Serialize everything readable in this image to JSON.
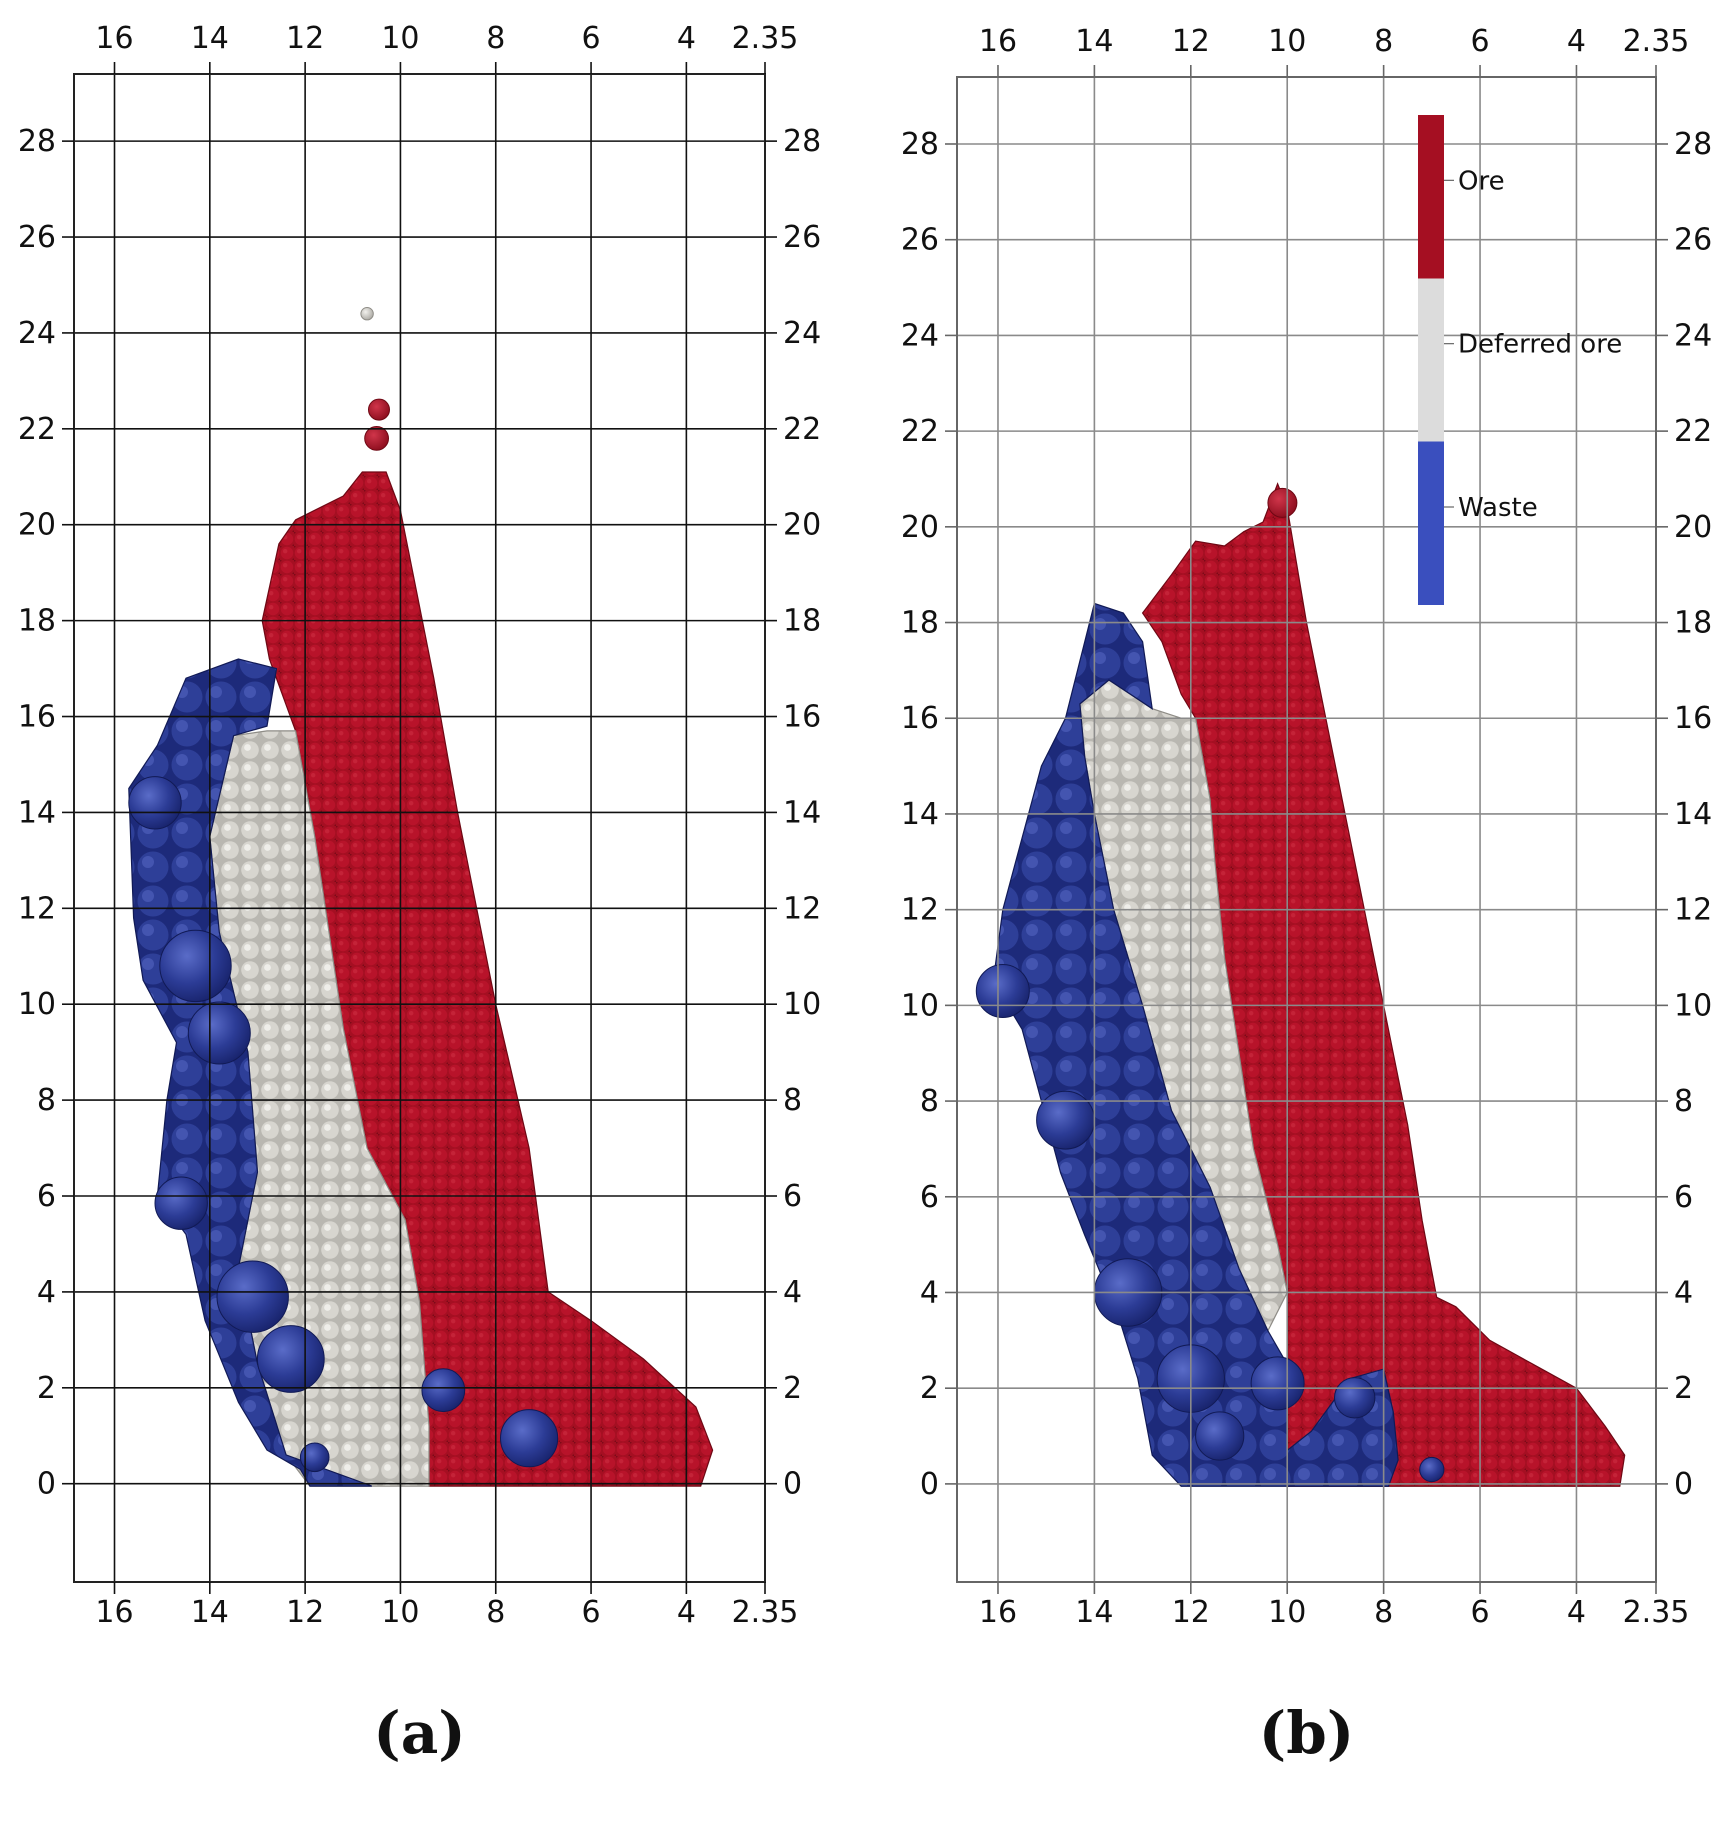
{
  "chart_data": [
    {
      "type": "scatter",
      "panel_label": "(a)",
      "title": "",
      "xlabel": "",
      "ylabel": "",
      "x_ticks": [
        "16",
        "14",
        "12",
        "10",
        "8",
        "6",
        "4",
        "2.35"
      ],
      "x_tick_values": [
        16,
        14,
        12,
        10,
        8,
        6,
        4,
        2.35
      ],
      "y_ticks": [
        "0",
        "2",
        "4",
        "6",
        "8",
        "10",
        "12",
        "14",
        "16",
        "18",
        "20",
        "22",
        "24",
        "26",
        "28"
      ],
      "y_tick_values": [
        0,
        2,
        4,
        6,
        8,
        10,
        12,
        14,
        16,
        18,
        20,
        22,
        24,
        26,
        28
      ],
      "xlim": [
        16.85,
        2.35
      ],
      "ylim": [
        -2.05,
        29.4
      ],
      "grid": true,
      "regions": [
        {
          "material": "Ore",
          "outline": [
            [
              12.9,
              18.0
            ],
            [
              12.55,
              19.6
            ],
            [
              12.2,
              20.1
            ],
            [
              11.6,
              20.4
            ],
            [
              11.2,
              20.6
            ],
            [
              10.8,
              21.1
            ],
            [
              10.3,
              21.1
            ],
            [
              10.0,
              20.3
            ],
            [
              9.3,
              16.8
            ],
            [
              8.8,
              14.0
            ],
            [
              8.0,
              10.0
            ],
            [
              7.3,
              7.0
            ],
            [
              6.9,
              4.0
            ],
            [
              6.0,
              3.4
            ],
            [
              4.9,
              2.6
            ],
            [
              3.8,
              1.6
            ],
            [
              3.45,
              0.7
            ],
            [
              3.7,
              -0.05
            ],
            [
              9.4,
              -0.05
            ],
            [
              9.4,
              1.2
            ],
            [
              9.6,
              3.8
            ],
            [
              9.9,
              5.5
            ],
            [
              10.7,
              7.0
            ],
            [
              11.2,
              9.5
            ],
            [
              11.5,
              11.5
            ],
            [
              11.8,
              13.5
            ],
            [
              12.2,
              15.7
            ],
            [
              12.75,
              17.2
            ]
          ]
        },
        {
          "material": "Deferred ore",
          "outline": [
            [
              13.5,
              15.6
            ],
            [
              12.8,
              15.7
            ],
            [
              12.2,
              15.7
            ],
            [
              11.8,
              13.5
            ],
            [
              11.5,
              11.5
            ],
            [
              11.2,
              9.5
            ],
            [
              10.7,
              7.0
            ],
            [
              9.9,
              5.5
            ],
            [
              9.6,
              3.8
            ],
            [
              9.4,
              1.2
            ],
            [
              9.4,
              -0.05
            ],
            [
              11.9,
              -0.05
            ],
            [
              12.4,
              0.6
            ],
            [
              13.0,
              2.5
            ],
            [
              13.4,
              4.5
            ],
            [
              13.0,
              6.5
            ],
            [
              13.2,
              9.0
            ],
            [
              13.8,
              11.5
            ],
            [
              14.0,
              13.5
            ]
          ]
        },
        {
          "material": "Waste",
          "outline": [
            [
              14.5,
              16.8
            ],
            [
              15.1,
              15.4
            ],
            [
              15.7,
              14.5
            ],
            [
              15.6,
              11.8
            ],
            [
              15.4,
              10.5
            ],
            [
              14.7,
              9.2
            ],
            [
              14.9,
              8.0
            ],
            [
              15.1,
              6.0
            ],
            [
              14.5,
              5.2
            ],
            [
              14.1,
              3.4
            ],
            [
              13.4,
              1.7
            ],
            [
              12.8,
              0.7
            ],
            [
              12.1,
              0.3
            ],
            [
              11.9,
              -0.05
            ],
            [
              10.6,
              -0.05
            ],
            [
              12.4,
              0.6
            ],
            [
              13.0,
              2.5
            ],
            [
              13.4,
              4.5
            ],
            [
              13.0,
              6.5
            ],
            [
              13.2,
              9.0
            ],
            [
              13.8,
              11.5
            ],
            [
              14.0,
              13.5
            ],
            [
              13.5,
              15.6
            ],
            [
              12.8,
              15.8
            ],
            [
              12.6,
              17.0
            ],
            [
              13.4,
              17.2
            ]
          ]
        }
      ],
      "blobs": [
        {
          "material": "Waste",
          "x": 15.15,
          "y": 14.2,
          "r": 0.55
        },
        {
          "material": "Waste",
          "x": 14.3,
          "y": 10.8,
          "r": 0.75
        },
        {
          "material": "Waste",
          "x": 13.8,
          "y": 9.4,
          "r": 0.65
        },
        {
          "material": "Waste",
          "x": 14.6,
          "y": 5.85,
          "r": 0.55
        },
        {
          "material": "Waste",
          "x": 13.1,
          "y": 3.9,
          "r": 0.75
        },
        {
          "material": "Waste",
          "x": 12.3,
          "y": 2.6,
          "r": 0.7
        },
        {
          "material": "Waste",
          "x": 9.1,
          "y": 1.95,
          "r": 0.45
        },
        {
          "material": "Waste",
          "x": 7.3,
          "y": 0.95,
          "r": 0.6
        },
        {
          "material": "Waste",
          "x": 11.8,
          "y": 0.55,
          "r": 0.3
        },
        {
          "material": "Deferred ore",
          "x": 10.7,
          "y": 24.4,
          "r": 0.13
        },
        {
          "material": "Ore",
          "x": 10.45,
          "y": 22.4,
          "r": 0.22
        },
        {
          "material": "Ore",
          "x": 10.5,
          "y": 21.8,
          "r": 0.25
        }
      ]
    },
    {
      "type": "scatter",
      "panel_label": "(b)",
      "title": "",
      "xlabel": "",
      "ylabel": "",
      "x_ticks": [
        "16",
        "14",
        "12",
        "10",
        "8",
        "6",
        "4",
        "2.35"
      ],
      "x_tick_values": [
        16,
        14,
        12,
        10,
        8,
        6,
        4,
        2.35
      ],
      "y_ticks": [
        "0",
        "2",
        "4",
        "6",
        "8",
        "10",
        "12",
        "14",
        "16",
        "18",
        "20",
        "22",
        "24",
        "26",
        "28"
      ],
      "y_tick_values": [
        0,
        2,
        4,
        6,
        8,
        10,
        12,
        14,
        16,
        18,
        20,
        22,
        24,
        26,
        28
      ],
      "xlim": [
        16.85,
        2.35
      ],
      "ylim": [
        -2.05,
        29.4
      ],
      "grid": true,
      "legend": {
        "position": "top-right",
        "items": [
          {
            "label": "Ore",
            "color": "#a50f22"
          },
          {
            "label": "Deferred ore",
            "color": "#dcdcdc"
          },
          {
            "label": "Waste",
            "color": "#3a4fbe"
          }
        ]
      },
      "regions": [
        {
          "material": "Ore",
          "outline": [
            [
              13.0,
              18.2
            ],
            [
              12.4,
              19.0
            ],
            [
              11.9,
              19.7
            ],
            [
              11.3,
              19.6
            ],
            [
              10.9,
              19.9
            ],
            [
              10.5,
              20.1
            ],
            [
              10.2,
              20.9
            ],
            [
              10.0,
              20.4
            ],
            [
              9.6,
              18.0
            ],
            [
              9.2,
              16.0
            ],
            [
              8.6,
              13.0
            ],
            [
              8.0,
              10.0
            ],
            [
              7.5,
              7.5
            ],
            [
              7.2,
              5.5
            ],
            [
              6.9,
              3.9
            ],
            [
              6.5,
              3.7
            ],
            [
              5.8,
              3.0
            ],
            [
              4.9,
              2.5
            ],
            [
              4.0,
              2.0
            ],
            [
              3.4,
              1.2
            ],
            [
              3.0,
              0.6
            ],
            [
              3.1,
              -0.05
            ],
            [
              10.0,
              -0.05
            ],
            [
              10.0,
              4.0
            ],
            [
              10.2,
              5.0
            ],
            [
              10.7,
              7.0
            ],
            [
              11.0,
              9.0
            ],
            [
              11.3,
              11.0
            ],
            [
              11.5,
              13.0
            ],
            [
              11.6,
              14.3
            ],
            [
              11.9,
              16.0
            ],
            [
              12.2,
              16.5
            ],
            [
              12.6,
              17.6
            ]
          ]
        },
        {
          "material": "Deferred ore",
          "outline": [
            [
              14.3,
              16.3
            ],
            [
              13.7,
              16.8
            ],
            [
              12.8,
              16.2
            ],
            [
              12.2,
              16.0
            ],
            [
              11.9,
              16.0
            ],
            [
              11.6,
              14.3
            ],
            [
              11.5,
              13.0
            ],
            [
              11.3,
              11.0
            ],
            [
              11.0,
              9.0
            ],
            [
              10.7,
              7.0
            ],
            [
              10.2,
              5.0
            ],
            [
              10.0,
              4.0
            ],
            [
              10.4,
              3.2
            ],
            [
              11.0,
              4.5
            ],
            [
              11.6,
              6.2
            ],
            [
              12.4,
              7.8
            ],
            [
              13.0,
              10.0
            ],
            [
              13.6,
              12.0
            ],
            [
              14.0,
              14.0
            ],
            [
              14.2,
              15.2
            ]
          ]
        },
        {
          "material": "Waste",
          "outline": [
            [
              14.0,
              18.4
            ],
            [
              13.4,
              18.2
            ],
            [
              13.0,
              17.6
            ],
            [
              12.8,
              16.2
            ],
            [
              13.7,
              16.8
            ],
            [
              14.3,
              16.3
            ],
            [
              14.2,
              15.2
            ],
            [
              14.0,
              14.0
            ],
            [
              13.6,
              12.0
            ],
            [
              13.0,
              10.0
            ],
            [
              12.4,
              7.8
            ],
            [
              11.6,
              6.2
            ],
            [
              11.0,
              4.5
            ],
            [
              10.4,
              3.2
            ],
            [
              10.0,
              2.5
            ],
            [
              10.0,
              -0.05
            ],
            [
              12.2,
              -0.05
            ],
            [
              12.8,
              0.6
            ],
            [
              13.1,
              2.2
            ],
            [
              13.5,
              3.5
            ],
            [
              14.2,
              5.2
            ],
            [
              14.7,
              6.5
            ],
            [
              15.1,
              8.0
            ],
            [
              15.5,
              9.5
            ],
            [
              16.1,
              10.5
            ],
            [
              15.9,
              12.0
            ],
            [
              15.5,
              13.5
            ],
            [
              15.1,
              15.0
            ],
            [
              14.6,
              16.0
            ]
          ]
        },
        {
          "material": "Waste",
          "outline": [
            [
              10.0,
              0.7
            ],
            [
              9.5,
              1.1
            ],
            [
              8.7,
              2.2
            ],
            [
              8.0,
              2.4
            ],
            [
              7.8,
              1.5
            ],
            [
              7.7,
              0.5
            ],
            [
              7.9,
              -0.05
            ],
            [
              10.0,
              -0.05
            ]
          ]
        }
      ],
      "blobs": [
        {
          "material": "Waste",
          "x": 15.9,
          "y": 10.3,
          "r": 0.55
        },
        {
          "material": "Waste",
          "x": 14.6,
          "y": 7.6,
          "r": 0.6
        },
        {
          "material": "Waste",
          "x": 13.3,
          "y": 4.0,
          "r": 0.7
        },
        {
          "material": "Waste",
          "x": 12.0,
          "y": 2.2,
          "r": 0.7
        },
        {
          "material": "Waste",
          "x": 10.2,
          "y": 2.1,
          "r": 0.55
        },
        {
          "material": "Waste",
          "x": 11.4,
          "y": 1.0,
          "r": 0.5
        },
        {
          "material": "Waste",
          "x": 8.6,
          "y": 1.8,
          "r": 0.42
        },
        {
          "material": "Waste",
          "x": 7.0,
          "y": 0.3,
          "r": 0.25
        },
        {
          "material": "Ore",
          "x": 10.1,
          "y": 20.5,
          "r": 0.3
        }
      ]
    }
  ]
}
